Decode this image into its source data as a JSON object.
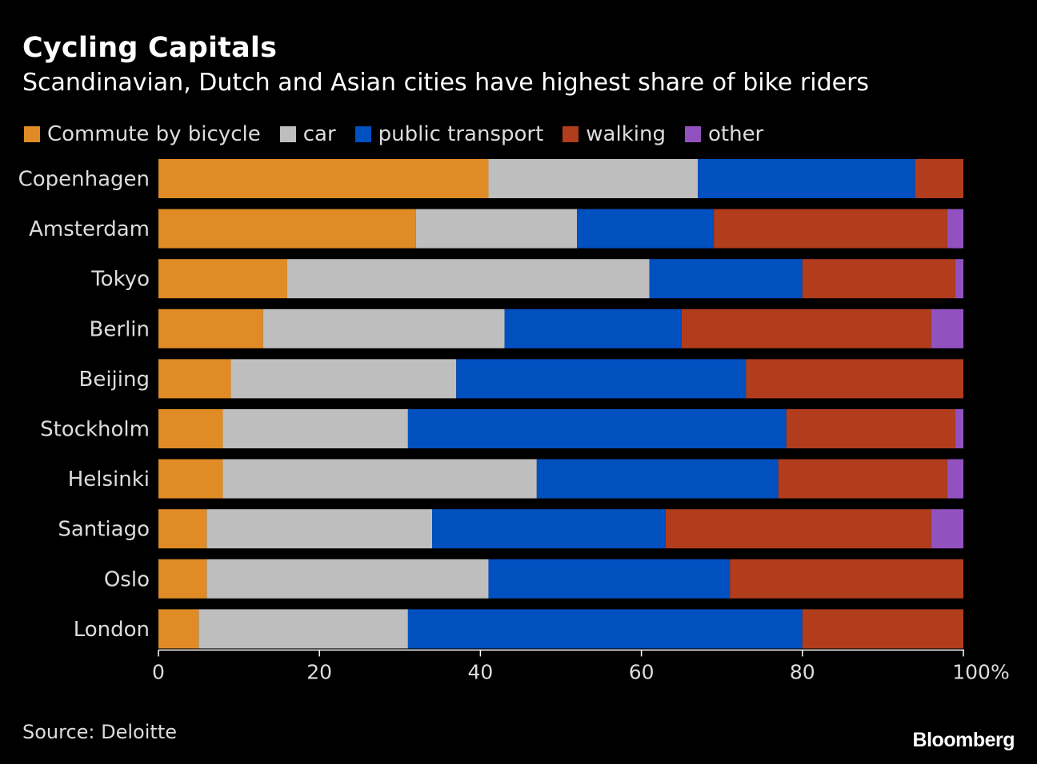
{
  "header": {
    "title": "Cycling Capitals",
    "subtitle": "Scandinavian, Dutch and Asian cities have highest share of bike riders"
  },
  "footer": {
    "source": "Source: Deloitte",
    "brand": "Bloomberg"
  },
  "chart_data": {
    "type": "bar",
    "orientation": "horizontal",
    "stacked": true,
    "categories": [
      "Copenhagen",
      "Amsterdam",
      "Tokyo",
      "Berlin",
      "Beijing",
      "Stockholm",
      "Helsinki",
      "Santiago",
      "Oslo",
      "London"
    ],
    "series": [
      {
        "name": "Commute by bicycle",
        "color": "#e08b25",
        "values": [
          41,
          32,
          16,
          13,
          9,
          8,
          8,
          6,
          6,
          5
        ]
      },
      {
        "name": "car",
        "color": "#bebebe",
        "values": [
          26,
          20,
          45,
          30,
          28,
          23,
          39,
          28,
          35,
          26
        ]
      },
      {
        "name": "public transport",
        "color": "#0050c0",
        "values": [
          27,
          17,
          19,
          22,
          36,
          47,
          30,
          29,
          30,
          49
        ]
      },
      {
        "name": "walking",
        "color": "#b13d1d",
        "values": [
          6,
          29,
          19,
          31,
          27,
          21,
          21,
          33,
          29,
          20
        ]
      },
      {
        "name": "other",
        "color": "#9152c0",
        "values": [
          0,
          2,
          1,
          4,
          0,
          1,
          2,
          4,
          0,
          0
        ]
      }
    ],
    "xlim": [
      0,
      100
    ],
    "x_ticks": [
      "0",
      "20",
      "40",
      "60",
      "80",
      "100%"
    ],
    "x_tick_values": [
      0,
      20,
      40,
      60,
      80,
      100
    ],
    "legend_position": "top",
    "grid": false
  }
}
